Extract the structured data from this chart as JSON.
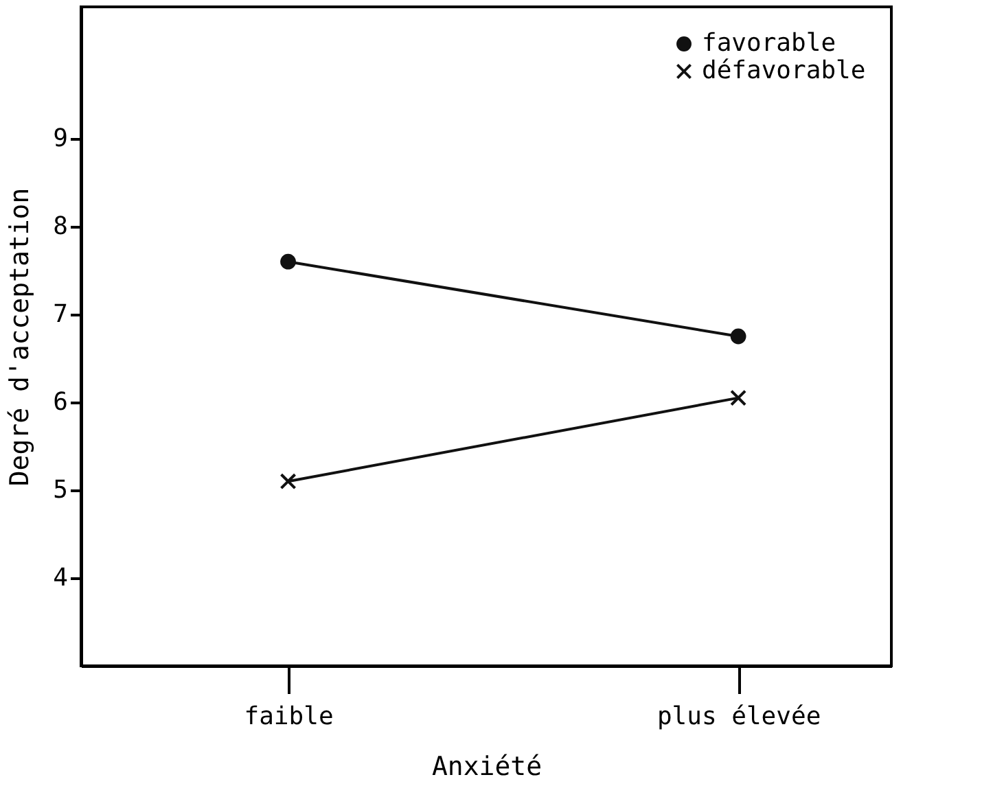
{
  "chart_data": {
    "type": "line",
    "xlabel": "Anxiété",
    "ylabel": "Degré d'acceptation",
    "categories": [
      "faible",
      "plus élevée"
    ],
    "series": [
      {
        "name": "favorable",
        "color": "#111111",
        "marker": "circle",
        "values": [
          7.6,
          6.75
        ]
      },
      {
        "name": "défavorable",
        "color": "#111111",
        "marker": "cross",
        "values": [
          5.1,
          6.05
        ]
      }
    ],
    "ylim": [
      3,
      10.5
    ],
    "yticks": [
      4,
      5,
      6,
      7,
      8,
      9
    ],
    "grid": false,
    "legend": "top right",
    "line_style": "solid"
  }
}
